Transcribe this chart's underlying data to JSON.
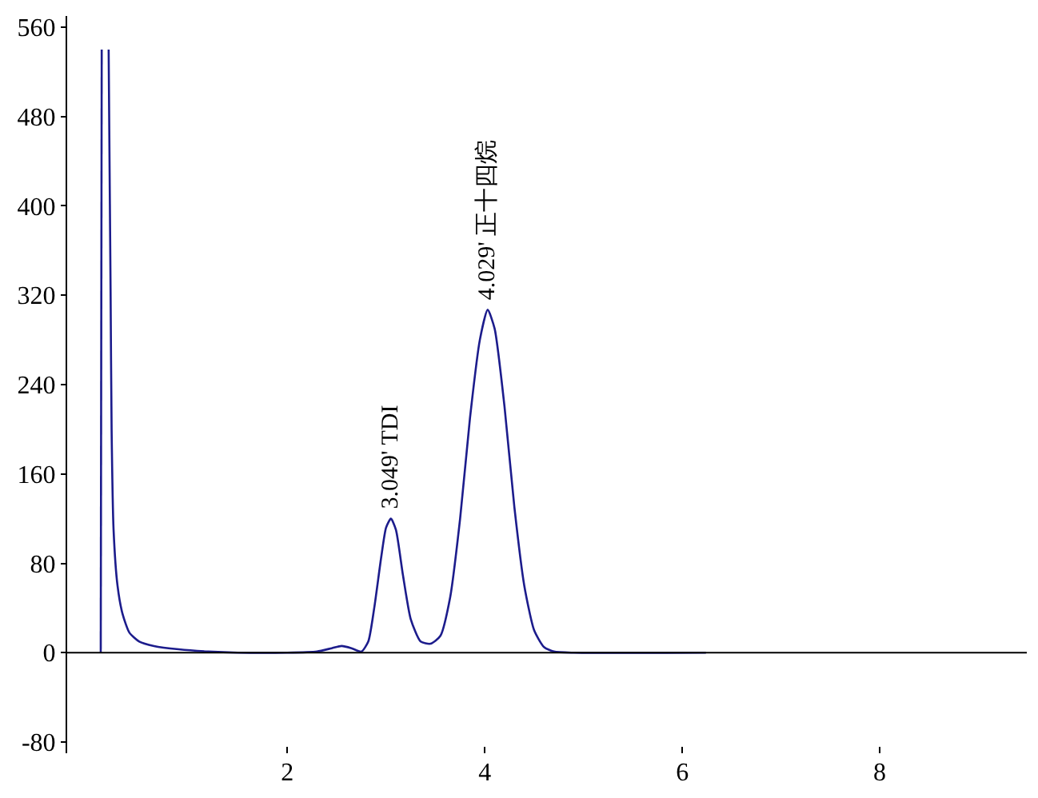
{
  "chart_data": {
    "type": "line",
    "x": [
      0.11,
      0.12,
      0.15,
      0.19,
      0.21,
      0.22,
      0.24,
      0.28,
      0.33,
      0.4,
      0.5,
      0.65,
      0.9,
      1.2,
      1.5,
      2.0,
      2.3,
      2.45,
      2.55,
      2.65,
      2.75,
      2.82,
      2.88,
      2.95,
      3.0,
      3.049,
      3.1,
      3.17,
      3.25,
      3.35,
      3.45,
      3.55,
      3.65,
      3.75,
      3.85,
      3.95,
      4.029,
      4.1,
      4.2,
      4.3,
      4.4,
      4.5,
      4.6,
      4.7,
      4.9,
      6.24
    ],
    "series": [
      {
        "color": "#1c1c8c",
        "values": [
          0,
          540,
          null,
          540,
          320,
          200,
          110,
          60,
          35,
          18,
          10,
          6,
          3,
          1,
          0,
          0,
          1,
          4,
          6,
          4,
          1,
          10,
          40,
          85,
          112,
          120,
          110,
          70,
          30,
          10,
          8,
          15,
          50,
          120,
          210,
          280,
          307,
          290,
          220,
          130,
          60,
          20,
          5,
          1,
          0,
          0
        ]
      }
    ],
    "xlim": [
      -0.23,
      9.49
    ],
    "xticks": [
      2,
      4,
      6,
      8
    ],
    "ylim": [
      -90,
      570
    ],
    "yticks": [
      -80,
      0,
      80,
      160,
      240,
      320,
      400,
      480,
      560
    ],
    "annotations": [
      {
        "text": "3.049' TDI",
        "x": 3.049,
        "y": 120
      },
      {
        "text": "4.029' 正十四烷",
        "x": 4.029,
        "y": 307
      }
    ],
    "ref_lines": [
      {
        "axis": "y",
        "value": 0,
        "color": "#000000"
      }
    ],
    "legend": false,
    "marker": "none",
    "line_style": "solid"
  }
}
